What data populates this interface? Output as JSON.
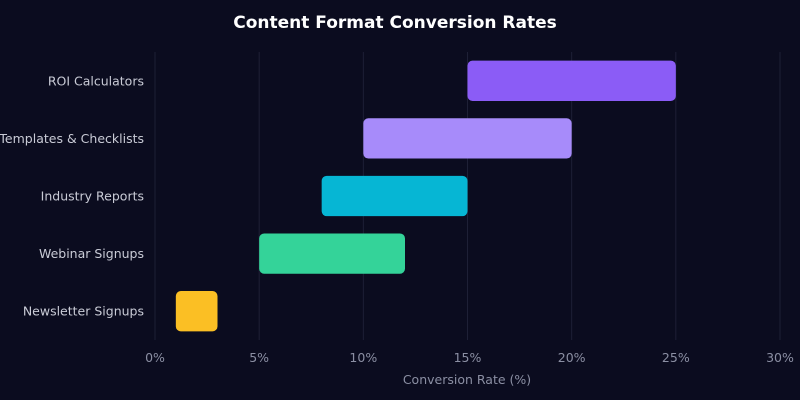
{
  "chart_data": {
    "type": "bar",
    "orientation": "horizontal",
    "style": "floating-range",
    "title": "Content Format Conversion Rates",
    "xlabel": "Conversion Rate (%)",
    "ylabel": "",
    "xlim": [
      0,
      30
    ],
    "x_ticks": [
      0,
      5,
      10,
      15,
      20,
      25,
      30
    ],
    "x_tick_labels": [
      "0%",
      "5%",
      "10%",
      "15%",
      "20%",
      "25%",
      "30%"
    ],
    "grid": true,
    "legend": "none",
    "categories": [
      "ROI Calculators",
      "Templates & Checklists",
      "Industry Reports",
      "Webinar Signups",
      "Newsletter Signups"
    ],
    "ranges": [
      {
        "low": 15,
        "high": 25
      },
      {
        "low": 10,
        "high": 20
      },
      {
        "low": 8,
        "high": 15
      },
      {
        "low": 5,
        "high": 12
      },
      {
        "low": 1,
        "high": 3
      }
    ],
    "colors": [
      "#8b5cf6",
      "#a78bfa",
      "#06b6d4",
      "#34d399",
      "#fbbf24"
    ]
  }
}
